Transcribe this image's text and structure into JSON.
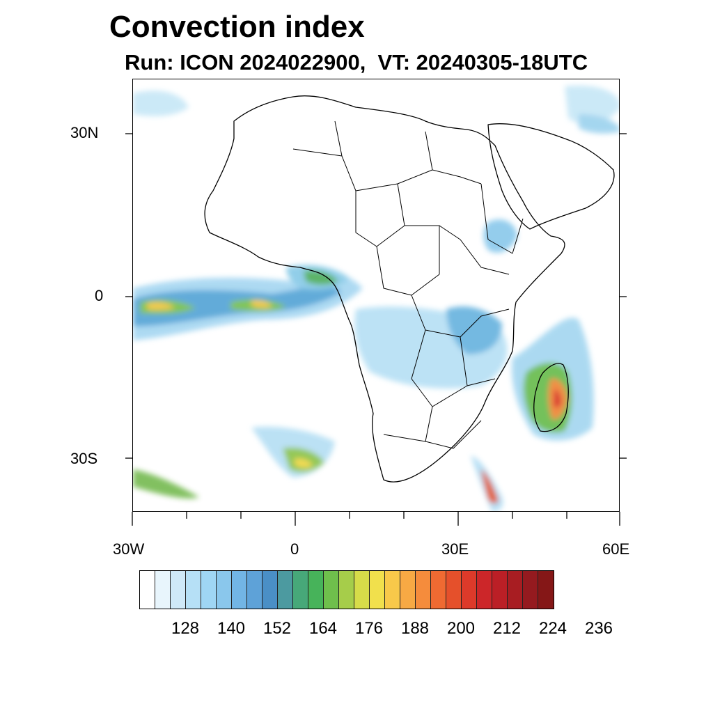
{
  "title": "Convection index",
  "subtitle": "Run: ICON 2024022900,  VT: 20240305-18UTC",
  "map": {
    "projection": "cylindrical equidistant",
    "lon_range": [
      -30,
      60
    ],
    "lat_range": [
      -40,
      40
    ],
    "lon_tick_labels": [
      "30W",
      "0",
      "30E",
      "60E"
    ],
    "lat_tick_labels": [
      "30N",
      "0",
      "30S"
    ],
    "coastlines_color": "#000000"
  },
  "colorbar": {
    "colors": [
      "#ffffff",
      "#e8f5fc",
      "#cfe9f8",
      "#b6e0f6",
      "#9fd6f4",
      "#8ac7ec",
      "#72b5e5",
      "#5ea2d8",
      "#4a8fc6",
      "#4c9aa0",
      "#47a879",
      "#47b35a",
      "#6fbf4c",
      "#a6cd4a",
      "#d7dc49",
      "#f1e04c",
      "#f8c94a",
      "#f7a944",
      "#f58c3c",
      "#ef6a32",
      "#e5502b",
      "#dd3a2a",
      "#cc2629",
      "#bb1f26",
      "#a81d22",
      "#951a1f",
      "#851717"
    ],
    "labels": [
      "128",
      "140",
      "152",
      "164",
      "176",
      "188",
      "200",
      "212",
      "224",
      "236"
    ]
  }
}
